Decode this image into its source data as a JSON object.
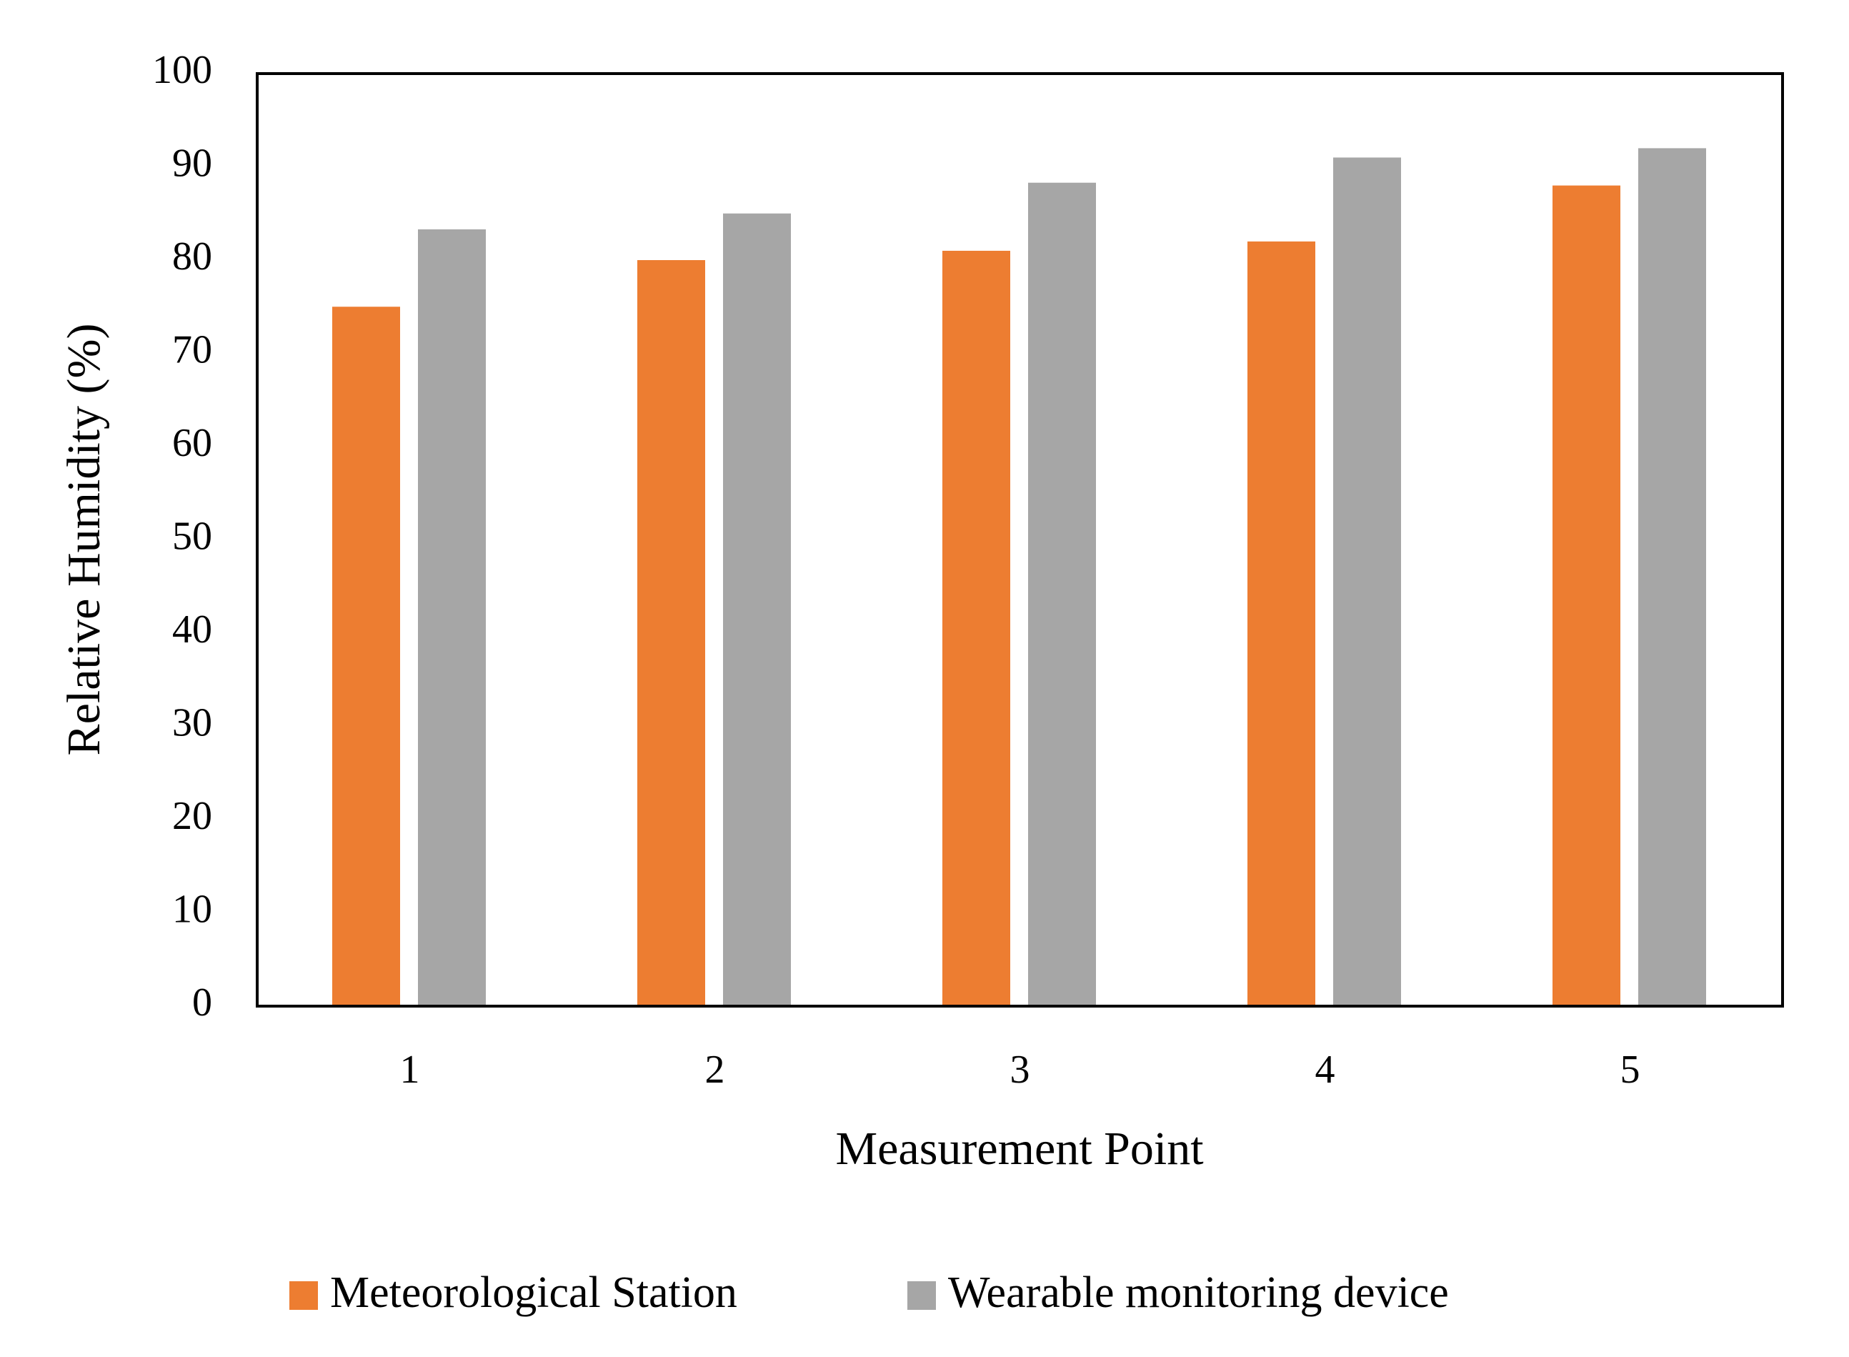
{
  "chart_data": {
    "type": "bar",
    "x_label": "Measurement Point",
    "y_label": "Relative Humidity (%)",
    "categories": [
      "1",
      "2",
      "3",
      "4",
      "5"
    ],
    "series": [
      {
        "name": "Meteorological Station",
        "color": "#ed7d31",
        "values": [
          75,
          80,
          81,
          82,
          88
        ]
      },
      {
        "name": "Wearable monitoring device",
        "color": "#a6a6a6",
        "values": [
          83.3,
          85,
          88.3,
          91,
          92
        ]
      }
    ],
    "ylim": [
      0,
      100
    ],
    "yticks": [
      0,
      10,
      20,
      30,
      40,
      50,
      60,
      70,
      80,
      90,
      100
    ],
    "grid": false,
    "legend": "bottom"
  }
}
